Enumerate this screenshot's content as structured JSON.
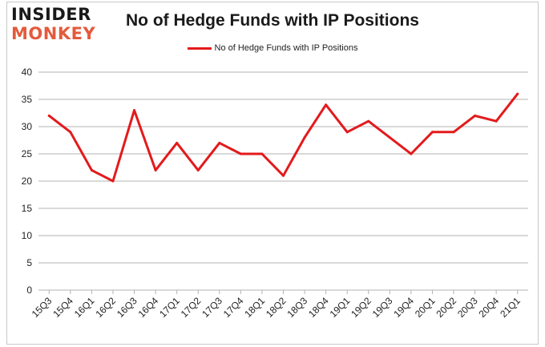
{
  "logo": {
    "line1": "INSIDER",
    "line2": "MONKEY"
  },
  "colors": {
    "series": "#e31a1c",
    "grid": "#b3b3b3",
    "logo_accent": "#e35b3c"
  },
  "chart_data": {
    "type": "line",
    "title": "No of Hedge Funds with IP Positions",
    "xlabel": "",
    "ylabel": "",
    "legend_position": "top-center",
    "grid": true,
    "ylim": [
      0,
      40
    ],
    "yticks": [
      0,
      5,
      10,
      15,
      20,
      25,
      30,
      35,
      40
    ],
    "categories": [
      "15Q3",
      "15Q4",
      "16Q1",
      "16Q2",
      "16Q3",
      "16Q4",
      "17Q1",
      "17Q2",
      "17Q3",
      "17Q4",
      "18Q1",
      "18Q2",
      "18Q3",
      "18Q4",
      "19Q1",
      "19Q2",
      "19Q3",
      "19Q4",
      "20Q1",
      "20Q2",
      "20Q3",
      "20Q4",
      "21Q1"
    ],
    "series": [
      {
        "name": "No of Hedge Funds with IP Positions",
        "values": [
          32,
          29,
          22,
          20,
          33,
          22,
          27,
          22,
          27,
          25,
          25,
          21,
          28,
          34,
          29,
          31,
          28,
          25,
          29,
          29,
          32,
          31,
          36
        ]
      }
    ]
  }
}
